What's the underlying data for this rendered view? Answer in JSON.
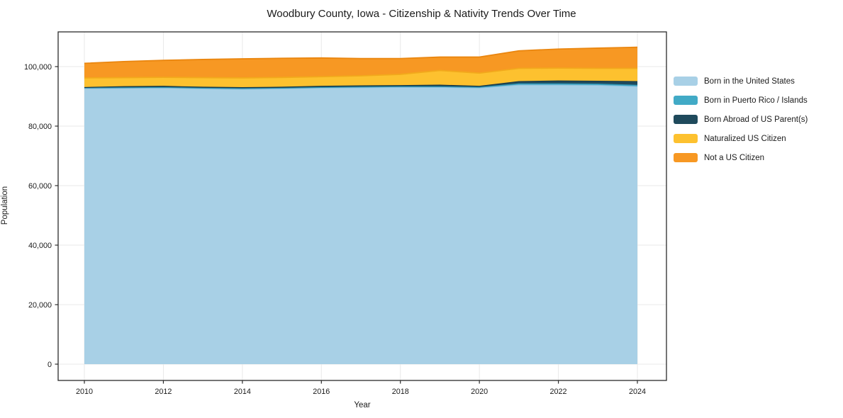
{
  "figure": {
    "background": "#ffffff"
  },
  "chart_data": {
    "type": "area",
    "stacked": true,
    "title": "Woodbury County, Iowa - Citizenship & Nativity Trends Over Time",
    "xlabel": "Year",
    "ylabel": "Population",
    "x": [
      2010,
      2011,
      2012,
      2013,
      2014,
      2015,
      2016,
      2017,
      2018,
      2019,
      2020,
      2021,
      2022,
      2023,
      2024
    ],
    "series": [
      {
        "name": "Born in the United States",
        "color": "#a8d0e6",
        "edge_color": "#8cc0dc",
        "values": [
          92600,
          92700,
          92800,
          92550,
          92400,
          92550,
          92800,
          92900,
          93000,
          93000,
          92800,
          93800,
          93800,
          93700,
          93300
        ]
      },
      {
        "name": "Born in Puerto Rico / Islands",
        "color": "#41aac6",
        "edge_color": "#2e93b3",
        "values": [
          200,
          200,
          200,
          200,
          200,
          200,
          200,
          250,
          250,
          250,
          250,
          450,
          450,
          450,
          450
        ]
      },
      {
        "name": "Born Abroad of US Parent(s)",
        "color": "#1f4a5c",
        "edge_color": "#16394a",
        "values": [
          200,
          400,
          400,
          350,
          350,
          350,
          400,
          400,
          400,
          550,
          350,
          750,
          950,
          950,
          1250
        ]
      },
      {
        "name": "Naturalized US Citizen",
        "color": "#fdc12f",
        "edge_color": "#f2a91c",
        "values": [
          3200,
          3000,
          3000,
          3200,
          3250,
          3250,
          3200,
          3350,
          3750,
          4900,
          4400,
          4400,
          4300,
          4300,
          4400
        ]
      },
      {
        "name": "Not a US Citizen",
        "color": "#f79823",
        "edge_color": "#ea860f",
        "values": [
          4900,
          5400,
          5700,
          6100,
          6400,
          6450,
          6300,
          5800,
          5300,
          4500,
          5400,
          5900,
          6400,
          6800,
          7100
        ]
      }
    ],
    "xticks": [
      2010,
      2012,
      2014,
      2016,
      2018,
      2020,
      2022,
      2024
    ],
    "xtick_labels": [
      "2010",
      "2012",
      "2014",
      "2016",
      "2018",
      "2020",
      "2022",
      "2024"
    ],
    "yticks": [
      0,
      20000,
      40000,
      60000,
      80000,
      100000
    ],
    "ytick_labels": [
      "0",
      "20,000",
      "40,000",
      "60,000",
      "80,000",
      "100,000"
    ],
    "ylim": [
      -5500,
      111700
    ],
    "xlim": [
      2009.34,
      2024.74
    ],
    "grid": true,
    "legend_position": "right"
  },
  "style": {
    "grid_color": "#e9e9e9",
    "spine_color": "#2b2b2b",
    "tick_color": "#2b2b2b",
    "text_color": "#1a1a1a"
  }
}
